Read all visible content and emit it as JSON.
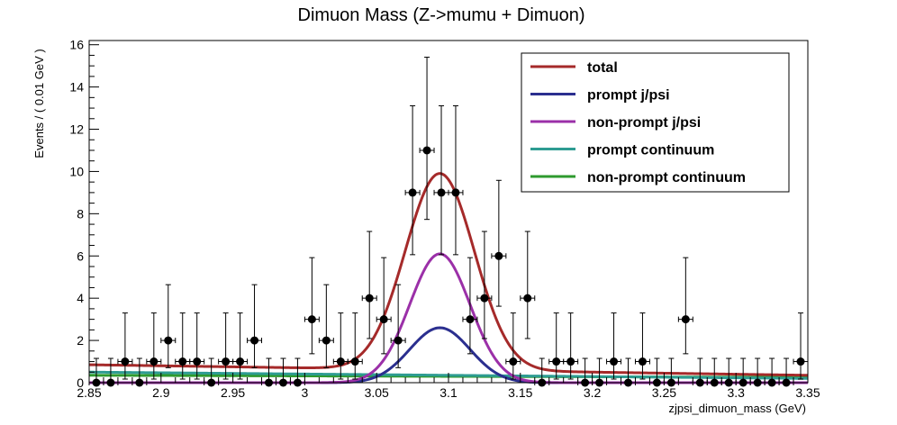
{
  "chart_data": {
    "type": "line",
    "title": "Dimuon Mass (Z->mumu + Dimuon)",
    "xlabel": "zjpsi_dimuon_mass (GeV)",
    "ylabel": "Events / ( 0.01 GeV )",
    "xlim": [
      2.85,
      3.35
    ],
    "ylim": [
      0,
      16.2
    ],
    "xticks": [
      "2.85",
      "2.9",
      "2.95",
      "3",
      "3.05",
      "3.1",
      "3.15",
      "3.2",
      "3.25",
      "3.3",
      "3.35"
    ],
    "yticks": [
      "0",
      "2",
      "4",
      "6",
      "8",
      "10",
      "12",
      "14",
      "16"
    ],
    "legend_position": "top-right",
    "data_points": {
      "x": [
        2.855,
        2.865,
        2.875,
        2.885,
        2.895,
        2.905,
        2.915,
        2.925,
        2.935,
        2.945,
        2.955,
        2.965,
        2.975,
        2.985,
        2.995,
        3.005,
        3.015,
        3.025,
        3.035,
        3.045,
        3.055,
        3.065,
        3.075,
        3.085,
        3.095,
        3.105,
        3.115,
        3.125,
        3.135,
        3.145,
        3.155,
        3.165,
        3.175,
        3.185,
        3.195,
        3.205,
        3.215,
        3.225,
        3.235,
        3.245,
        3.255,
        3.265,
        3.275,
        3.285,
        3.295,
        3.305,
        3.315,
        3.325,
        3.335,
        3.345
      ],
      "y": [
        0,
        0,
        1,
        0,
        1,
        2,
        1,
        1,
        0,
        1,
        1,
        2,
        0,
        0,
        0,
        3,
        2,
        1,
        1,
        4,
        3,
        2,
        9,
        11,
        9,
        9,
        3,
        4,
        6,
        1,
        4,
        0,
        1,
        1,
        0,
        0,
        1,
        0,
        1,
        0,
        0,
        3,
        0,
        0,
        0,
        0,
        0,
        0,
        0,
        1
      ],
      "yerr_low": [
        0,
        0,
        0.83,
        0,
        0.83,
        1.29,
        0.83,
        0.83,
        0,
        0.83,
        0.83,
        1.29,
        0,
        0,
        0,
        1.63,
        1.29,
        0.83,
        0.83,
        1.91,
        1.63,
        1.29,
        2.94,
        3.27,
        2.94,
        2.94,
        1.63,
        1.91,
        2.38,
        0.83,
        1.91,
        0,
        0.83,
        0.83,
        0,
        0,
        0.83,
        0,
        0.83,
        0,
        0,
        1.63,
        0,
        0,
        0,
        0,
        0,
        0,
        0,
        0.83
      ],
      "yerr_high": [
        1.15,
        1.15,
        2.3,
        1.15,
        2.3,
        2.64,
        2.3,
        2.3,
        1.15,
        2.3,
        2.3,
        2.64,
        1.15,
        1.15,
        1.15,
        2.92,
        2.64,
        2.3,
        2.3,
        3.16,
        2.92,
        2.64,
        4.11,
        4.41,
        4.11,
        4.11,
        2.92,
        3.16,
        3.58,
        2.3,
        3.16,
        1.15,
        2.3,
        2.3,
        1.15,
        1.15,
        2.3,
        1.15,
        2.3,
        1.15,
        1.15,
        2.92,
        1.15,
        1.15,
        1.15,
        1.15,
        1.15,
        1.15,
        1.15,
        2.3
      ]
    },
    "series": [
      {
        "name": "total",
        "color": "#A52A2A",
        "peak": 9.3,
        "mean": 3.094,
        "sigma": 0.024,
        "baseline_start": 0.85,
        "baseline_end": 0.35
      },
      {
        "name": "prompt j/psi",
        "color": "#2B2F8F",
        "peak": 2.6,
        "mean": 3.094,
        "sigma": 0.021,
        "baseline_start": 0,
        "baseline_end": 0
      },
      {
        "name": "non-prompt j/psi",
        "color": "#9B30A8",
        "peak": 6.1,
        "mean": 3.094,
        "sigma": 0.021,
        "baseline_start": 0,
        "baseline_end": 0
      },
      {
        "name": "prompt continuum",
        "color": "#2E9C92",
        "peak": 0,
        "mean": 3.094,
        "sigma": 0.02,
        "baseline_start": 0.5,
        "baseline_end": 0.2
      },
      {
        "name": "non-prompt continuum",
        "color": "#2E9A2E",
        "peak": 0,
        "mean": 3.094,
        "sigma": 0.02,
        "baseline_start": 0.35,
        "baseline_end": 0.25
      }
    ]
  }
}
